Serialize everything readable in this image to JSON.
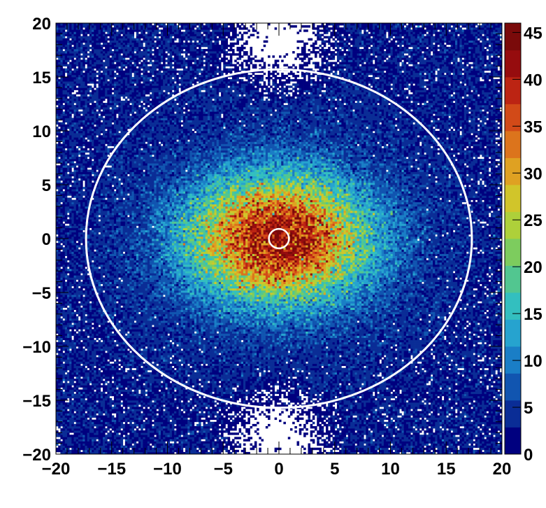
{
  "chart_data": {
    "type": "heatmap",
    "title": "",
    "xlabel": "",
    "ylabel": "",
    "xlim": [
      -20,
      20
    ],
    "ylim": [
      -20,
      20
    ],
    "x_ticks": [
      "−20",
      "−15",
      "−10",
      "−5",
      "0",
      "5",
      "10",
      "15",
      "20"
    ],
    "y_ticks": [
      "−20",
      "−15",
      "−10",
      "−5",
      "0",
      "5",
      "10",
      "15",
      "20"
    ],
    "colorbar": {
      "zlim": [
        0,
        46
      ],
      "ticks": [
        "0",
        "5",
        "10",
        "15",
        "20",
        "25",
        "30",
        "35",
        "40",
        "45"
      ],
      "palette": [
        "#00007f",
        "#0a2d96",
        "#1155b0",
        "#1a7ec6",
        "#26a3cf",
        "#33bfbf",
        "#52c690",
        "#7dcc5e",
        "#aed03a",
        "#d1c52a",
        "#dfa122",
        "#dc741c",
        "#d24a18",
        "#bc2413",
        "#960c0e",
        "#7a0a0a"
      ]
    },
    "distribution": {
      "description_type": "gaussian",
      "center": [
        0,
        0
      ],
      "peak_counts": 40,
      "sigma_x": 5.5,
      "sigma_y": 4.0,
      "background_counts": 3
    },
    "overlays": {
      "outer_circle": {
        "center": [
          0,
          0
        ],
        "radius_x": 17.3,
        "radius_y": 15.7,
        "color": "#ffffff"
      },
      "inner_circle": {
        "center": [
          0,
          0
        ],
        "radius_x": 0.9,
        "radius_y": 0.9,
        "color": "#ffffff"
      }
    },
    "empty_regions": [
      {
        "center": [
          0,
          18.5
        ],
        "radius": 3.5
      },
      {
        "center": [
          0,
          -18.5
        ],
        "radius": 3.5
      }
    ],
    "grid": false
  }
}
